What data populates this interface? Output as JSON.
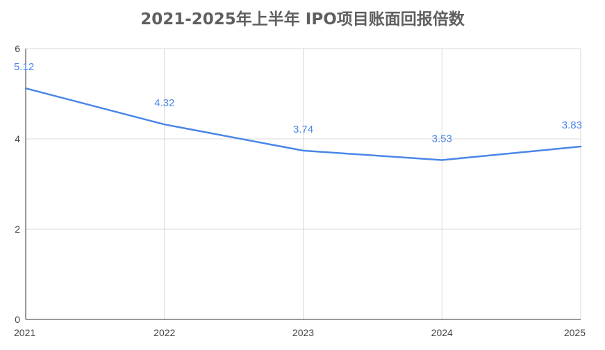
{
  "chart_data": {
    "type": "line",
    "title": "2021-2025年上半年 IPO项目账面回报倍数",
    "x": [
      "2021",
      "2022",
      "2023",
      "2024",
      "2025"
    ],
    "series": [
      {
        "values": [
          5.12,
          4.32,
          3.74,
          3.53,
          3.83
        ]
      }
    ],
    "data_labels": [
      "5.12",
      "4.32",
      "3.74",
      "3.53",
      "3.83"
    ],
    "y_ticks": [
      "0",
      "2",
      "4",
      "6"
    ],
    "ylim": [
      0,
      6
    ],
    "grid": true,
    "legend": "none",
    "colors": {
      "line": "#4a86e8",
      "label": "#4a86e8",
      "grid": "#d9d9d9",
      "axis": "#333333",
      "title": "#5f5f5f"
    }
  }
}
